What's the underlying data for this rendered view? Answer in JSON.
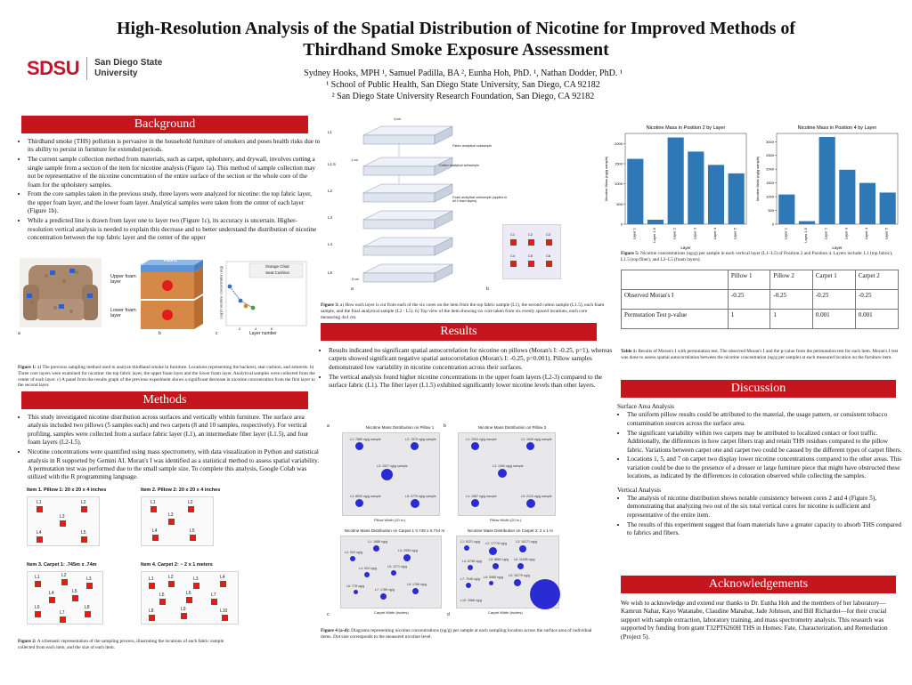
{
  "header": {
    "title": "High-Resolution Analysis of the Spatial Distribution of Nicotine for Improved Methods of Thirdhand Smoke Exposure Assessment",
    "authors": "Sydney Hooks, MPH ¹, Samuel Padilla, BA ², Eunha Hoh, PhD. ¹, Nathan Dodder, PhD. ¹",
    "affil1": "¹ School of Public Health, San Diego State University, San Diego, CA 92182",
    "affil2": "² San Diego State University Research Foundation, San Diego, CA 92182",
    "logo_mark": "SDSU",
    "logo_line1": "San Diego State",
    "logo_line2": "University"
  },
  "background": {
    "heading": "Background",
    "bullets": [
      "Thirdhand smoke (THS) pollution is pervasive in the household furniture of smokers and poses health risks due to its ability to persist in furniture for extended periods.",
      "The current sample collection method from materials, such as carpet, upholstery, and drywall, involves cutting a single sample from a section of the item for nicotine analysis (Figure 1a). This method of sample collection may not be representative of the nicotine concentration of the entire surface of the section or the whole core of the foam for the upholstery samples.",
      "From the core samples taken in the previous study, three layers were analyzed for nicotine: the top fabric layer, the upper foam layer, and the lower foam layer. Analytical samples were taken from the center of each layer (Figure 1b).",
      "While a predicted line is drawn from layer one to layer two (Figure 1c), its accuracy is uncertain. Higher-resolution vertical analysis is needed to explain this decrease and to better understand the distribution of nicotine concentration between the top fabric layer and the center of the upper"
    ]
  },
  "fig1": {
    "fabric": "Fabric",
    "upper": "Upper foam layer",
    "lower": "Lower foam layer",
    "legend1": "Orange Chair",
    "legend2": "Seat Cushion",
    "ylabel": "Log10 nicotine concentration (ng)",
    "xlabel": "Layer number",
    "xticks": [
      "2",
      "4",
      "6"
    ],
    "label_a": "a",
    "label_b": "b",
    "label_c": "c",
    "caption_bold": "Figure 1:",
    "caption": " a) The previous sampling method used to analyze thirdhand smoke in furniture. Locations representing the backrest, seat cushion, and armrests. b) Three core layers were examined for nicotine: the top fabric layer, the upper foam layer and the lower foam layer. Analytical samples were collected from the center of each layer. c) A panel from the results graph of the previous experiment shows a significant decrease in nicotine concentration from the first layer to the second layer."
  },
  "methods": {
    "heading": "Methods",
    "bullets": [
      "This study investigated nicotine distribution across surfaces and vertically within furniture. The surface area analysis included two pillows (5 samples each) and two carpets (8 and 10 samples, respectively). For vertical profiling, samples were collected from a surface fabric layer (L1), an intermediate fiber layer (L1.5), and four foam layers (L2-L5).",
      "Nicotine concentrations were quantified using mass spectrometry, with data visualization in Python and statistical analysis in R supported by Gemini AI. Moran's I was identified as a statistical method to assess spatial variability. A permutation test was performed due to the small sample size. To complete this analysis, Google Colab was utilized with the R programming language."
    ]
  },
  "fig2": {
    "item1": "Item 1. Pillow 1: 20 x 20 x 4 inches",
    "item2": "Item 2. Pillow 2: 20 x 20 x 4 inches",
    "item3": "Item 3. Carpet 1: .745m x .74m",
    "item4": "Item 4. Carpet 2: ~ 2 x 1 meters",
    "pillow_labels": [
      "L1",
      "L2",
      "L3",
      "L4",
      "L5"
    ],
    "carpet1_labels": [
      "L1",
      "L2",
      "L3",
      "L4",
      "L5",
      "L6",
      "L7",
      "L8"
    ],
    "carpet2_labels": [
      "L1",
      "L2",
      "L3",
      "L4",
      "L5",
      "L6",
      "L7",
      "L8",
      "L9",
      "L10"
    ],
    "caption_bold": "Figure 2:",
    "caption": " A schematic representation of the sampling process, illustrating the locations of each fabric sample collected from each item, and the size of each item."
  },
  "fig3": {
    "layers": [
      "L1",
      "L1.5",
      "L2",
      "L3",
      "L4",
      "L5"
    ],
    "dim_4cm": "4 cm",
    "dim_1cm": "1 cm",
    "dim_05cm": ".5 cm",
    "note1": "Fabric analytical subsample",
    "note2": "Cotton analytical subsample",
    "note3": "Foam analytical subsample (applies to all 4 foam layers)",
    "cores": [
      "C1",
      "C2",
      "C3",
      "C4",
      "C5",
      "C6"
    ],
    "label_a": "a",
    "label_b": "b",
    "caption_bold": "Figure 3:",
    "caption": " a) How each layer is cut from each of the six cores on the item from the top fabric sample (L1), the second cotton sample (L1.5), each foam sample, and the final analytical sample (L2 - L5). b) Top view of the item showing six core taken from six evenly spaced locations, each core measuring 4x4 cm."
  },
  "results": {
    "heading": "Results",
    "bullets": [
      "Results indicated no significant spatial autocorrelation for nicotine on pillows (Moran's I: -0.25, p=1), whereas carpets showed significant negative spatial autocorrelation (Moran's I: -0.25, p=0.001). Pillow samples demonstrated low variability in nicotine concentration across their surfaces.",
      "The vertical analysis found higher nicotine concentrations in the upper foam layers (L2-3) compared to the surface fabric (L1). The fiber layer (L1.5) exhibited significantly lower nicotine levels than other layers."
    ]
  },
  "fig4": {
    "a_title": "Nicotine Mass Distribution on Pillow 1",
    "b_title": "Nicotine Mass Distribution on Pillow 2",
    "c_title": "Nicotine Mass Distribution on Carpet 1 0.745 x 0.744 m",
    "d_title": "Nicotine Mass Distribution on Carpet 2: 2 x 1 m",
    "pillow_x": "Pillow Width (20 in.)",
    "carpet1_x": "Carpet Width (inches)",
    "carpet2_x": "Carpet Width (inches)",
    "p1_labels": [
      "L1: 7889 ng/g sample",
      "L2: 7870 ng/g sample",
      "L3: 1927 ng/g sample",
      "L4: 8000 ng/g sample",
      "L5: 3779 ng/g sample"
    ],
    "p2_labels": [
      "L1: 1934 ng/g sample",
      "L2: 1949 ng/g sample",
      "L3: 1269 ng/g sample",
      "L4: 1587 ng/g sample",
      "L5: 2124 ng/g sample"
    ],
    "c1_labels": [
      "L1: 1888 ng/g",
      "L2: 903 ng/g",
      "L3: 2959 ng/g",
      "L4: 924 ng/g",
      "L5: 1271 ng/g",
      "L6: 778 ng/g",
      "L7: 1785 ng/g",
      "L8: 1765 ng/g"
    ],
    "c2_labels": [
      "L1: 8121 ng/g",
      "L2: 17778 ng/g",
      "L3: 16171 ng/g",
      "L4: 6738 ng/g",
      "L5: 8863 ng/g",
      "L6: 11188 ng/g",
      "L7: 7046 ng/g",
      "L8: 5985 ng/g",
      "L9: 16779 ng/g",
      "L10: 2968 ng/g"
    ],
    "label_a": "a",
    "label_b": "b",
    "label_c": "c",
    "label_d": "d",
    "caption_bold": "Figure 4 (a-d):",
    "caption": " Diagrams representing nicotine concentrations (ng/g) per sample at each sampling location across the surface area of individual items. Dot size corresponds to the measured nicotine level."
  },
  "fig5": {
    "caption_bold": "Figure 5:",
    "caption": " Nicotine concentrations (ng/g) per sample in each vertical layer (L1–L5) of Position 2 and Position 4. Layers include: L1 (top fabric), L1.5 (top fiber), and L2–L5 (foam layers)."
  },
  "table": {
    "headers": [
      "",
      "Pillow 1",
      "Pillow 2",
      "Carpet 1",
      "Carpet 2"
    ],
    "rows": [
      [
        "Observed Moran's I",
        "-0.25",
        "-0.25",
        "-0.25",
        "-0.25"
      ],
      [
        "Permutation Test p-value",
        "1",
        "1",
        "0.001",
        "0.001"
      ]
    ],
    "caption_bold": "Table 1:",
    "caption": " Results of Moran's I with permutation test. The observed Moran's I and the p-value from the permutation test for each item. Moran's I test was done to assess spatial autocorrelation between the nicotine concentration (ng/g per sample) at each measured location on the furniture item."
  },
  "discussion": {
    "heading": "Discussion",
    "sub1": "Surface Area Analysis",
    "bullets1": [
      "The uniform pillow results could be attributed to the material, the usage pattern, or consistent tobacco contamination sources across the surface area.",
      "The significant variability within two carpets may be attributed to localized contact or foot traffic. Additionally, the differences in how carpet fibers trap and retain THS residues compared to the pillow fabric. Variations between carpet one and carpet two could be caused by the different types of carpet fibers.",
      "Locations 1, 5, and 7 on carpet two display lower nicotine concentrations compared to the other areas. This variation could be due to the presence of a dresser or large furniture piece that might have obstructed these locations, as indicated by the differences in coloration observed while collecting the samples."
    ],
    "sub2": "Vertical Analysis",
    "bullets2": [
      "The analysis of nicotine distribution shows notable consistency between cores 2 and 4 (Figure 5), demonstrating that analyzing two out of the six total vertical cores for nicotine is sufficient and representative of the entire item.",
      "The results of this experiment suggest that foam materials have a greater capacity to absorb THS compared to fabrics and fibers."
    ]
  },
  "acknowledgements": {
    "heading": "Acknowledgements",
    "text": "We wish to acknowledge and extend our thanks to Dr. Eunha Hoh and the members of her laboratory—Kamrun Nahar, Kayo Watanabe, Claudine Manabat, Jade Johnson, and Bill Richardot—for their crucial support with sample extraction, laboratory training, and mass spectrometry analysis. This research was supported by funding from grant T32PT6260H THS in Homes: Fate, Characterization, and Remediation (Project 5)."
  },
  "colors": {
    "banner": "#c4161c",
    "bar": "#2f78b6",
    "sample": "#e21b1b",
    "dot": "#2b2bd4"
  },
  "chart_data": [
    {
      "type": "bar",
      "title": "Nicotine Mass in Position 2 by Layer",
      "xlabel": "Layer",
      "ylabel": "Nicotine Mass (ng/g sample)",
      "categories": [
        "Layer 1",
        "Layer 1.5",
        "Layer 2",
        "Layer 3",
        "Layer 4",
        "Layer 5"
      ],
      "values": [
        1620,
        110,
        2150,
        1800,
        1470,
        1260
      ],
      "yticks": [
        0,
        500,
        1000,
        1500,
        2000
      ],
      "ylim": [
        0,
        2250
      ]
    },
    {
      "type": "bar",
      "title": "Nicotine Mass in Position 4 by Layer",
      "xlabel": "Layer",
      "ylabel": "Nicotine Mass (ng/g sample)",
      "categories": [
        "Layer 1",
        "Layer 1.5",
        "Layer 2",
        "Layer 3",
        "Layer 4",
        "Layer 5"
      ],
      "values": [
        1080,
        110,
        3170,
        1980,
        1500,
        1150
      ],
      "yticks": [
        0,
        500,
        1000,
        1500,
        2000,
        2500,
        3000
      ],
      "ylim": [
        0,
        3300
      ]
    }
  ]
}
